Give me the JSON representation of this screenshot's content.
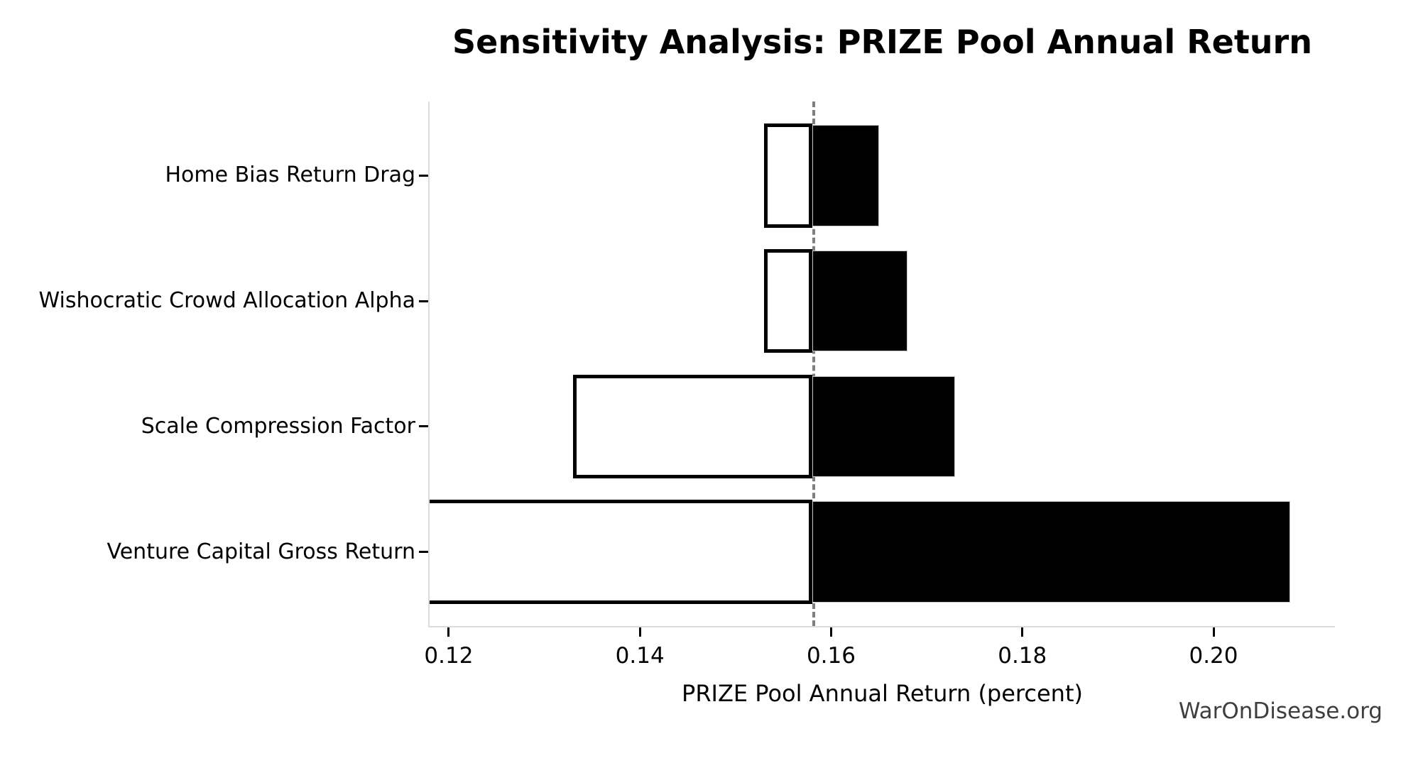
{
  "watermark": "WarOnDisease.org",
  "chart_data": {
    "type": "bar",
    "subtype": "tornado-sensitivity",
    "title": "Sensitivity Analysis: PRIZE Pool Annual Return",
    "xlabel": "PRIZE Pool Annual Return (percent)",
    "ylabel": "",
    "base_value": 0.158,
    "xlim": [
      0.118,
      0.2127
    ],
    "x_ticks": [
      0.12,
      0.14,
      0.16,
      0.18,
      0.2
    ],
    "x_tick_labels": [
      "0.12",
      "0.14",
      "0.16",
      "0.18",
      "0.20"
    ],
    "grid": false,
    "legend": null,
    "baseline_style": "dashed",
    "bar_height_fraction": 0.8,
    "categories": [
      "Home Bias Return Drag",
      "Wishocratic Crowd Allocation Alpha",
      "Scale Compression Factor",
      "Venture Capital Gross Return"
    ],
    "bars": [
      {
        "label": "Home Bias Return Drag",
        "low": 0.153,
        "high": 0.165,
        "low_clipped": false
      },
      {
        "label": "Wishocratic Crowd Allocation Alpha",
        "low": 0.153,
        "high": 0.168,
        "low_clipped": false
      },
      {
        "label": "Scale Compression Factor",
        "low": 0.133,
        "high": 0.173,
        "low_clipped": false
      },
      {
        "label": "Venture Capital Gross Return",
        "low": 0.118,
        "high": 0.208,
        "low_clipped": true
      }
    ],
    "colors": {
      "low_fill": "#ffffff",
      "low_edge": "#000000",
      "high_fill": "#000000",
      "high_edge": "#c9c9c9",
      "baseline": "#7f7f7f",
      "spine": "#dcdcdc",
      "tick": "#000000",
      "text": "#000000",
      "watermark": "#3e3e3e",
      "background": "#ffffff"
    }
  }
}
